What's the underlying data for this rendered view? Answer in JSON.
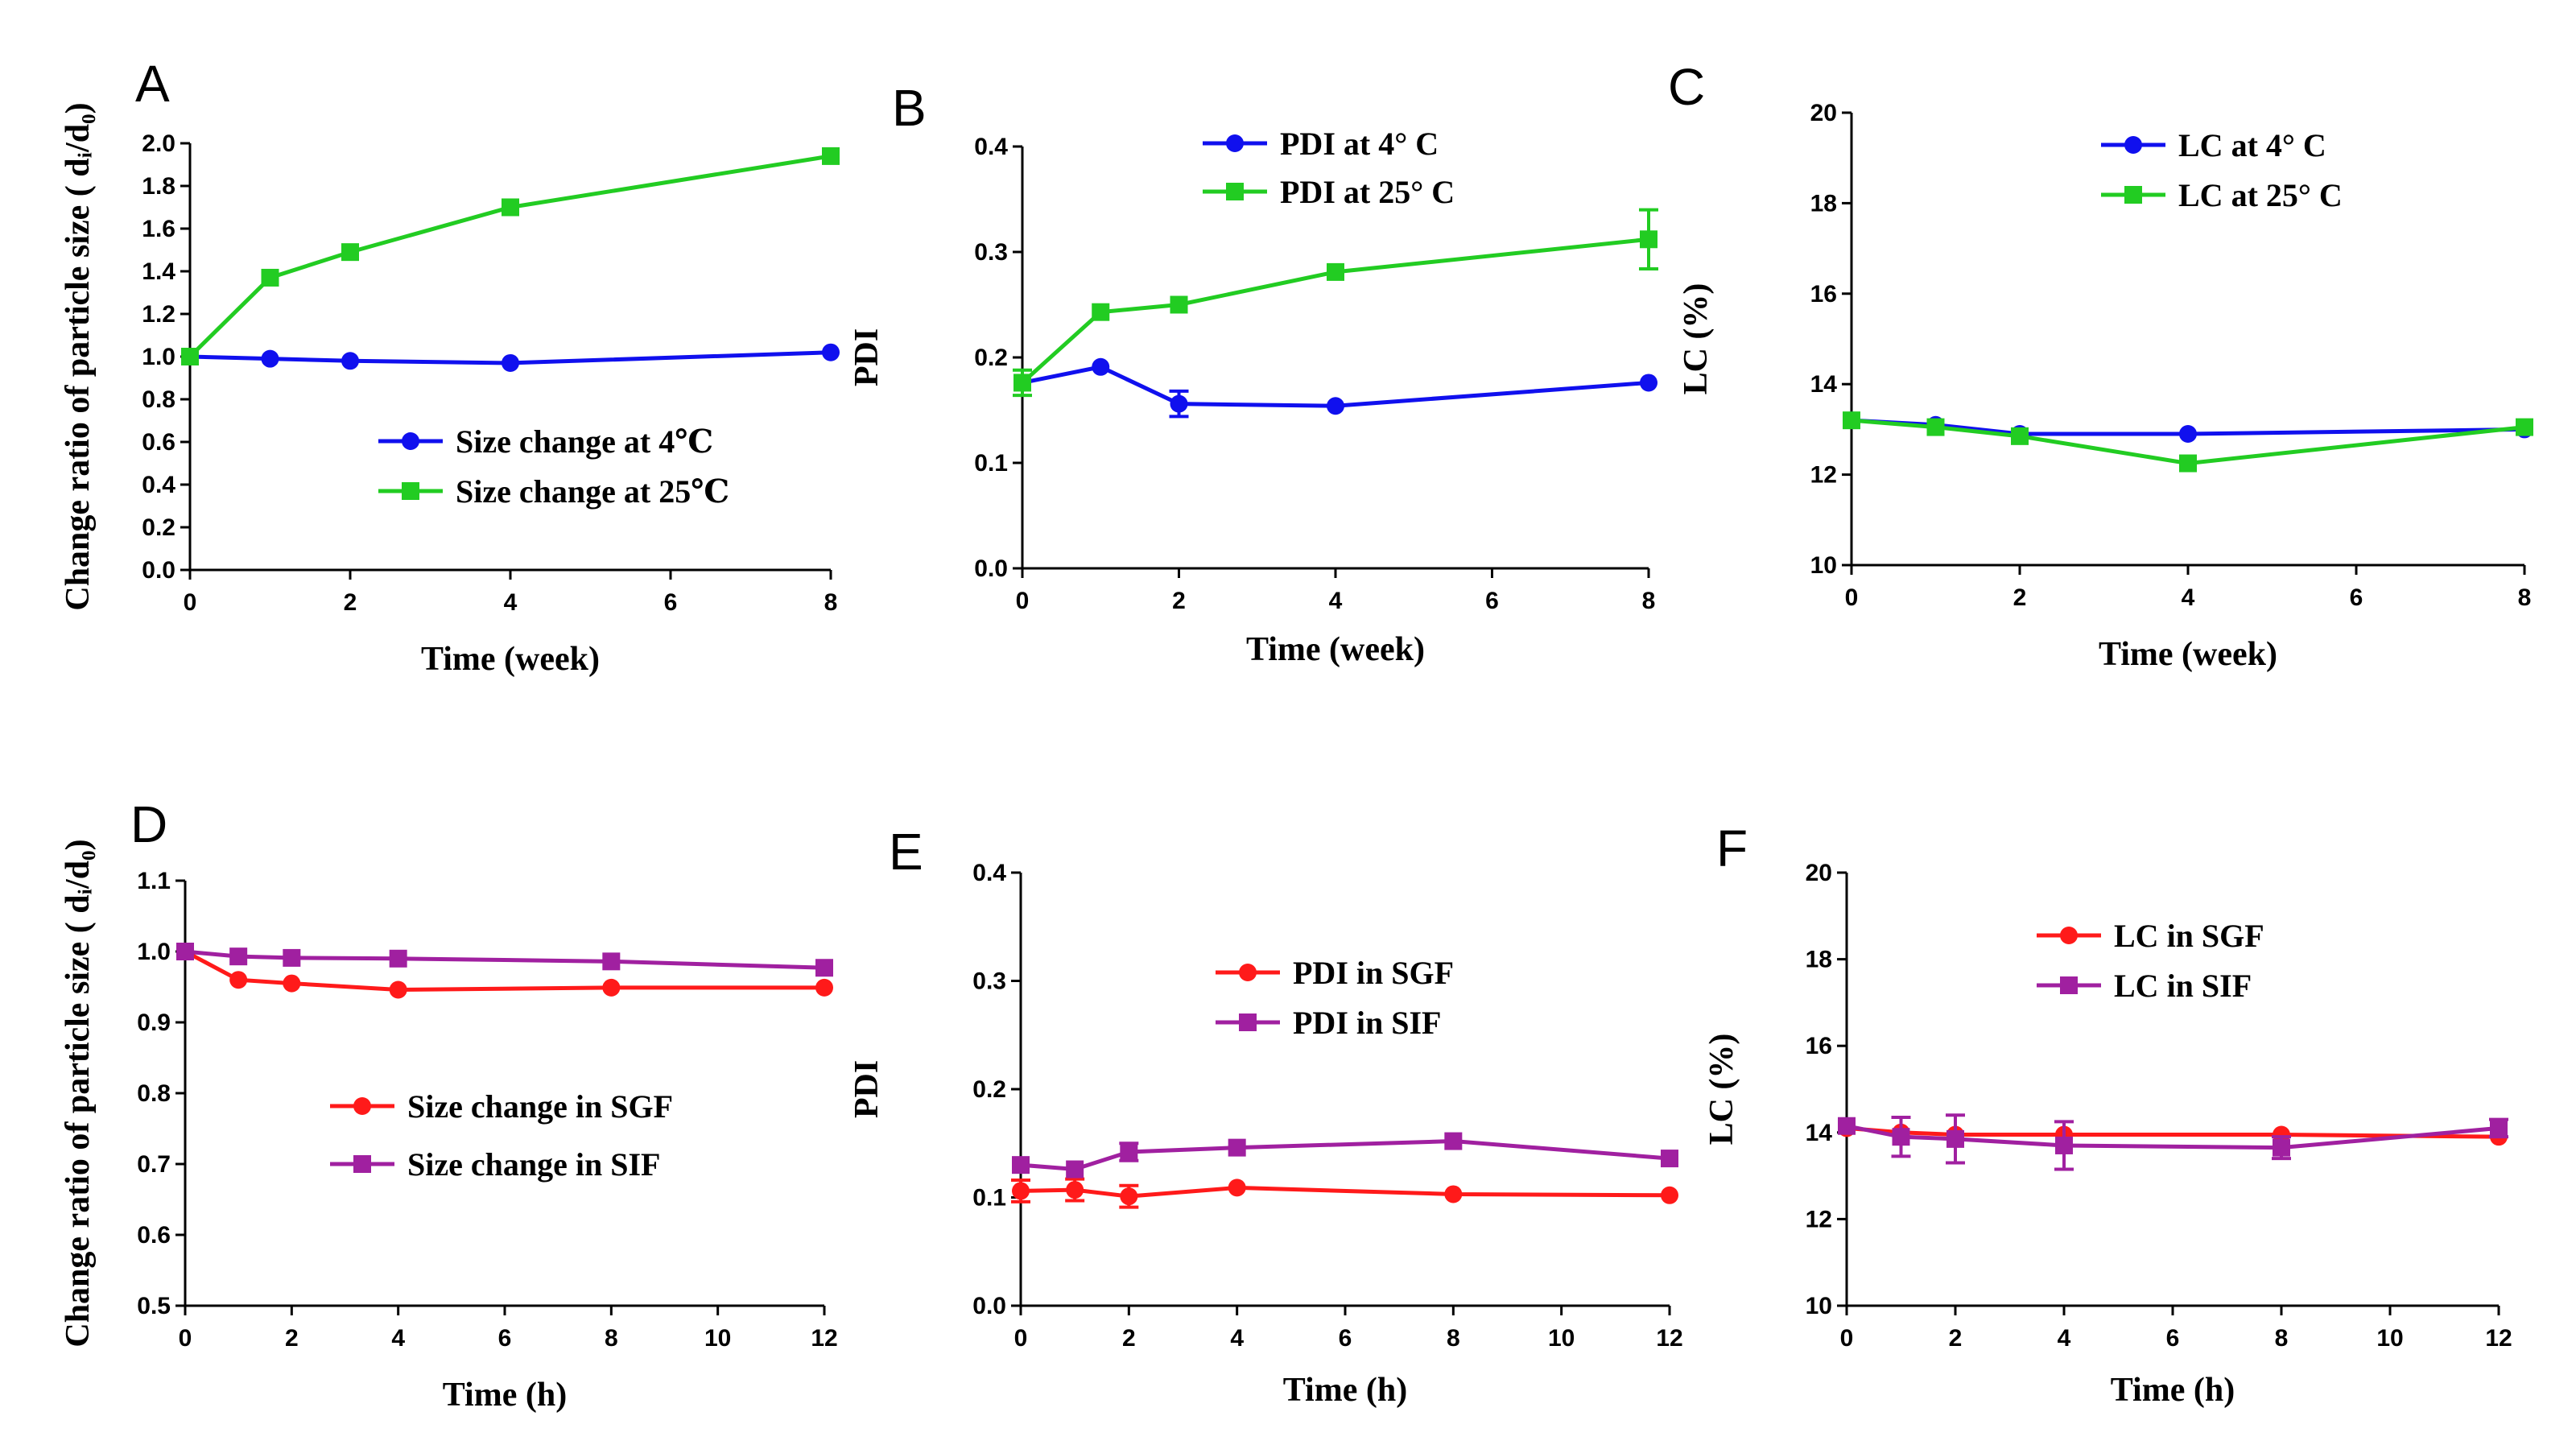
{
  "chart_data": [
    {
      "id": "A",
      "panel_label": "A",
      "type": "line",
      "xlabel": "Time (week)",
      "ylabel": "Change ratio of particle size ( dᵢ/d₀)",
      "xlim": [
        0,
        8
      ],
      "ylim": [
        0.0,
        2.0
      ],
      "xticks": [
        "0",
        "2",
        "4",
        "6",
        "8"
      ],
      "yticks": [
        "0.0",
        "0.2",
        "0.4",
        "0.6",
        "0.8",
        "1.0",
        "1.2",
        "1.4",
        "1.6",
        "1.8",
        "2.0"
      ],
      "legend_position": "bottom-right",
      "series": [
        {
          "name": "Size change at 4℃",
          "color": "#1010ee",
          "marker": "circle",
          "x": [
            0,
            1,
            2,
            4,
            8
          ],
          "y": [
            1.0,
            0.99,
            0.98,
            0.97,
            1.02
          ]
        },
        {
          "name": "Size change at 25℃",
          "color": "#22cc22",
          "marker": "square",
          "x": [
            0,
            1,
            2,
            4,
            8
          ],
          "y": [
            1.0,
            1.37,
            1.49,
            1.7,
            1.94
          ]
        }
      ]
    },
    {
      "id": "B",
      "panel_label": "B",
      "type": "line",
      "xlabel": "Time (week)",
      "ylabel": "PDI",
      "xlim": [
        0,
        8
      ],
      "ylim": [
        0.0,
        0.4
      ],
      "xticks": [
        "0",
        "2",
        "4",
        "6",
        "8"
      ],
      "yticks": [
        "0.0",
        "0.1",
        "0.2",
        "0.3",
        "0.4"
      ],
      "legend_position": "top-right",
      "series": [
        {
          "name": "PDI at 4° C",
          "color": "#1010ee",
          "marker": "circle",
          "x": [
            0,
            1,
            2,
            4,
            8
          ],
          "y": [
            0.176,
            0.191,
            0.156,
            0.154,
            0.176
          ],
          "err": [
            0,
            0,
            0.012,
            0,
            0
          ]
        },
        {
          "name": "PDI at 25° C",
          "color": "#22cc22",
          "marker": "square",
          "x": [
            0,
            1,
            2,
            4,
            8
          ],
          "y": [
            0.176,
            0.243,
            0.25,
            0.281,
            0.312
          ],
          "err": [
            0.012,
            0,
            0,
            0,
            0.028
          ]
        }
      ]
    },
    {
      "id": "C",
      "panel_label": "C",
      "type": "line",
      "xlabel": "Time (week)",
      "ylabel": "LC (%)",
      "xlim": [
        0,
        8
      ],
      "ylim": [
        10,
        20
      ],
      "xticks": [
        "0",
        "2",
        "4",
        "6",
        "8"
      ],
      "yticks": [
        "10",
        "12",
        "14",
        "16",
        "18",
        "20"
      ],
      "legend_position": "top-right",
      "series": [
        {
          "name": "LC at 4° C",
          "color": "#1010ee",
          "marker": "circle",
          "x": [
            0,
            1,
            2,
            4,
            8
          ],
          "y": [
            13.2,
            13.1,
            12.9,
            12.9,
            13.0
          ]
        },
        {
          "name": "LC at 25° C",
          "color": "#22cc22",
          "marker": "square",
          "x": [
            0,
            1,
            2,
            4,
            8
          ],
          "y": [
            13.2,
            13.05,
            12.85,
            12.25,
            13.05
          ]
        }
      ]
    },
    {
      "id": "D",
      "panel_label": "D",
      "type": "line",
      "xlabel": "Time (h)",
      "ylabel": "Change ratio of particle size ( dᵢ/d₀)",
      "xlim": [
        0,
        12
      ],
      "ylim": [
        0.5,
        1.1
      ],
      "xticks": [
        "0",
        "2",
        "4",
        "6",
        "8",
        "10",
        "12"
      ],
      "yticks": [
        "0.5",
        "0.6",
        "0.7",
        "0.8",
        "0.9",
        "1.0",
        "1.1"
      ],
      "legend_position": "bottom-right",
      "series": [
        {
          "name": "Size change in SGF",
          "color": "#ff1a1a",
          "marker": "circle",
          "x": [
            0,
            1,
            2,
            4,
            8,
            12
          ],
          "y": [
            1.0,
            0.96,
            0.955,
            0.946,
            0.949,
            0.949
          ]
        },
        {
          "name": "Size change in SIF",
          "color": "#a020a0",
          "marker": "square",
          "x": [
            0,
            1,
            2,
            4,
            8,
            12
          ],
          "y": [
            1.0,
            0.993,
            0.991,
            0.99,
            0.986,
            0.977
          ]
        }
      ]
    },
    {
      "id": "E",
      "panel_label": "E",
      "type": "line",
      "xlabel": "Time (h)",
      "ylabel": "PDI",
      "xlim": [
        0,
        12
      ],
      "ylim": [
        0.0,
        0.4
      ],
      "xticks": [
        "0",
        "2",
        "4",
        "6",
        "8",
        "10",
        "12"
      ],
      "yticks": [
        "0.0",
        "0.1",
        "0.2",
        "0.3",
        "0.4"
      ],
      "legend_position": "center-right",
      "series": [
        {
          "name": "PDI in SGF",
          "color": "#ff1a1a",
          "marker": "circle",
          "x": [
            0,
            1,
            2,
            4,
            8,
            12
          ],
          "y": [
            0.106,
            0.107,
            0.101,
            0.109,
            0.103,
            0.102
          ],
          "err": [
            0.01,
            0.01,
            0.01,
            0,
            0,
            0
          ]
        },
        {
          "name": "PDI in SIF",
          "color": "#a020a0",
          "marker": "square",
          "x": [
            0,
            1,
            2,
            4,
            8,
            12
          ],
          "y": [
            0.13,
            0.126,
            0.142,
            0.146,
            0.152,
            0.136
          ],
          "err": [
            0,
            0,
            0.008,
            0,
            0,
            0
          ]
        }
      ]
    },
    {
      "id": "F",
      "panel_label": "F",
      "type": "line",
      "xlabel": "Time (h)",
      "ylabel": "LC (%)",
      "xlim": [
        0,
        12
      ],
      "ylim": [
        10,
        20
      ],
      "xticks": [
        "0",
        "2",
        "4",
        "6",
        "8",
        "10",
        "12"
      ],
      "yticks": [
        "10",
        "12",
        "14",
        "16",
        "18",
        "20"
      ],
      "legend_position": "top-center",
      "series": [
        {
          "name": "LC in SGF",
          "color": "#ff1a1a",
          "marker": "circle",
          "x": [
            0,
            1,
            2,
            4,
            8,
            12
          ],
          "y": [
            14.1,
            14.0,
            13.95,
            13.95,
            13.95,
            13.9
          ]
        },
        {
          "name": "LC in SIF",
          "color": "#a020a0",
          "marker": "square",
          "x": [
            0,
            1,
            2,
            4,
            8,
            12
          ],
          "y": [
            14.15,
            13.9,
            13.85,
            13.7,
            13.65,
            14.1
          ],
          "err": [
            0,
            0.45,
            0.55,
            0.55,
            0.25,
            0.2
          ]
        }
      ]
    }
  ]
}
